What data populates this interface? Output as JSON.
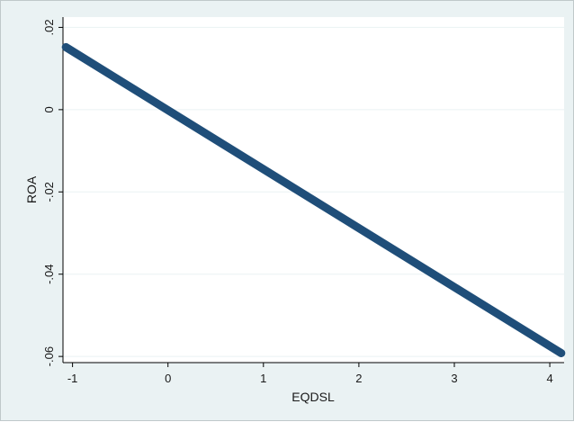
{
  "chart_data": {
    "type": "line",
    "title": "",
    "xlabel": "EQDSL",
    "ylabel": "ROA",
    "xlim": [
      -1.1,
      4.15
    ],
    "ylim": [
      -0.0615,
      0.0225
    ],
    "xticks": [
      {
        "value": -1,
        "label": "-1"
      },
      {
        "value": 0,
        "label": "0"
      },
      {
        "value": 1,
        "label": "1"
      },
      {
        "value": 2,
        "label": "2"
      },
      {
        "value": 3,
        "label": "3"
      },
      {
        "value": 4,
        "label": "4"
      }
    ],
    "yticks": [
      {
        "value": 0.02,
        "label": ".02"
      },
      {
        "value": 0,
        "label": "0"
      },
      {
        "value": -0.02,
        "label": "-.02"
      },
      {
        "value": -0.04,
        "label": "-.04"
      },
      {
        "value": -0.06,
        "label": "-.06"
      }
    ],
    "grid": true,
    "legend": "none",
    "series": [
      {
        "x": [
          -1.07,
          4.12
        ],
        "y": [
          0.0152,
          -0.0592
        ]
      }
    ],
    "colors": {
      "outer_background": "#eaf2f3",
      "plot_background": "#ffffff",
      "grid": "#eaf2f3",
      "series": "#1f4e79"
    }
  }
}
